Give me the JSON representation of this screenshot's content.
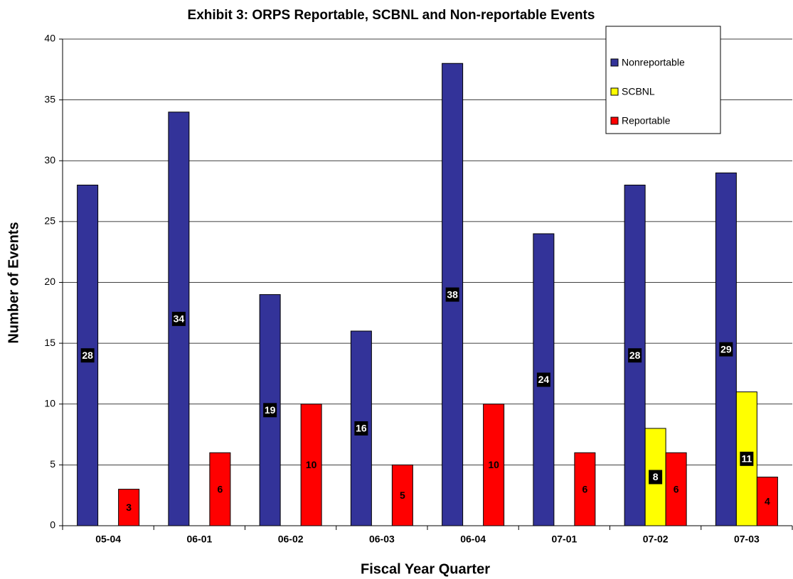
{
  "chart_data": {
    "type": "bar",
    "title": "Exhibit 3: ORPS Reportable, SCBNL and Non-reportable Events",
    "x_label": "Fiscal Year Quarter",
    "y_label": "Number of Events",
    "categories": [
      "05-04",
      "06-01",
      "06-02",
      "06-03",
      "06-04",
      "07-01",
      "07-02",
      "07-03"
    ],
    "series": [
      {
        "name": "Nonreportable",
        "color": "#333399",
        "values": [
          28,
          34,
          19,
          16,
          38,
          24,
          28,
          29
        ]
      },
      {
        "name": "SCBNL",
        "color": "#ffff00",
        "values": [
          null,
          null,
          null,
          null,
          null,
          null,
          8,
          11
        ]
      },
      {
        "name": "Reportable",
        "color": "#ff0000",
        "values": [
          3,
          6,
          10,
          5,
          10,
          6,
          6,
          4
        ]
      }
    ],
    "ylim": [
      0,
      40
    ],
    "yticks": [
      0,
      5,
      10,
      15,
      20,
      25,
      30,
      35,
      40
    ],
    "grid": true,
    "legend": "top-right"
  }
}
